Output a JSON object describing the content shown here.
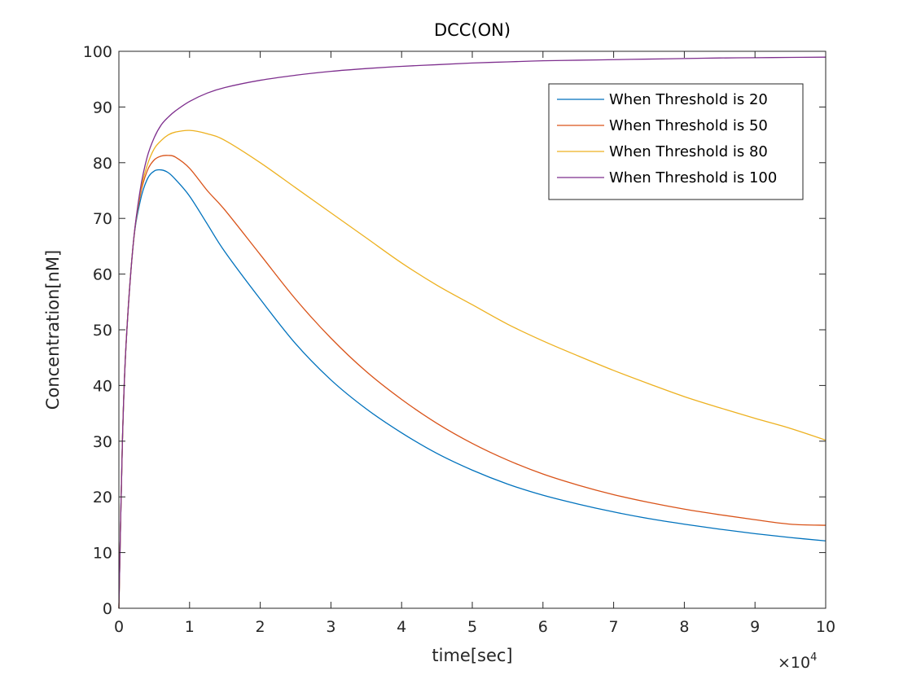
{
  "chart_data": {
    "type": "line",
    "title": "DCC(ON)",
    "xlabel": "time[sec]",
    "ylabel": "Concentration[nM]",
    "x_exponent_label": {
      "prefix": "×10",
      "power": "4"
    },
    "xlim": [
      0,
      10
    ],
    "ylim": [
      0,
      100
    ],
    "xticks": [
      0,
      1,
      2,
      3,
      4,
      5,
      6,
      7,
      8,
      9,
      10
    ],
    "yticks": [
      0,
      10,
      20,
      30,
      40,
      50,
      60,
      70,
      80,
      90,
      100
    ],
    "grid": false,
    "legend_position": "top-right",
    "series": [
      {
        "name": "When Threshold is 20",
        "color": "#0072BD",
        "x": [
          0,
          0.05,
          0.1,
          0.2,
          0.3,
          0.4,
          0.5,
          0.6,
          0.7,
          0.8,
          1,
          1.25,
          1.5,
          2,
          2.5,
          3,
          3.5,
          4,
          4.5,
          5,
          5.5,
          6,
          6.5,
          7,
          7.5,
          8,
          8.5,
          9,
          9.5,
          10
        ],
        "values": [
          0,
          30,
          47,
          65,
          73,
          77,
          78.5,
          78.7,
          78.2,
          77,
          74,
          69,
          64,
          55.5,
          47.5,
          41,
          35.8,
          31.5,
          27.8,
          24.8,
          22.3,
          20.3,
          18.7,
          17.3,
          16.1,
          15.1,
          14.2,
          13.4,
          12.7,
          12.1
        ]
      },
      {
        "name": "When Threshold is 50",
        "color": "#D95319",
        "x": [
          0,
          0.05,
          0.1,
          0.2,
          0.3,
          0.4,
          0.5,
          0.6,
          0.7,
          0.8,
          1,
          1.25,
          1.5,
          2,
          2.5,
          3,
          3.5,
          4,
          4.5,
          5,
          5.5,
          6,
          6.5,
          7,
          7.5,
          8,
          8.5,
          9,
          9.5,
          10
        ],
        "values": [
          0,
          30,
          47,
          65,
          74,
          78.5,
          80.5,
          81.2,
          81.3,
          81,
          79,
          75,
          71.5,
          63.5,
          55.5,
          48.5,
          42.5,
          37.5,
          33.2,
          29.6,
          26.6,
          24.1,
          22.1,
          20.4,
          19,
          17.8,
          16.8,
          15.9,
          15.1,
          14.9
        ]
      },
      {
        "name": "When Threshold is 80",
        "color": "#EDB120",
        "x": [
          0,
          0.05,
          0.1,
          0.2,
          0.3,
          0.4,
          0.5,
          0.6,
          0.7,
          0.8,
          1,
          1.25,
          1.5,
          2,
          2.5,
          3,
          3.5,
          4,
          4.5,
          5,
          5.5,
          6,
          6.5,
          7,
          7.5,
          8,
          8.5,
          9,
          9.5,
          10
        ],
        "values": [
          0,
          30,
          47,
          65,
          74.5,
          79.5,
          82.5,
          84,
          85,
          85.5,
          85.8,
          85.2,
          84,
          80,
          75.5,
          71,
          66.5,
          62,
          58,
          54.5,
          51,
          48,
          45.3,
          42.7,
          40.3,
          38,
          36,
          34.1,
          32.3,
          30.2
        ]
      },
      {
        "name": "When Threshold is 100",
        "color": "#7E2F8E",
        "x": [
          0,
          0.05,
          0.1,
          0.2,
          0.3,
          0.4,
          0.5,
          0.6,
          0.7,
          0.8,
          1,
          1.25,
          1.5,
          2,
          2.5,
          3,
          3.5,
          4,
          4.5,
          5,
          5.5,
          6,
          6.5,
          7,
          7.5,
          8,
          8.5,
          9,
          9.5,
          10
        ],
        "values": [
          0,
          30,
          47,
          65,
          75,
          81,
          84.5,
          86.8,
          88.2,
          89.3,
          91,
          92.5,
          93.5,
          94.8,
          95.7,
          96.4,
          96.9,
          97.3,
          97.6,
          97.9,
          98.1,
          98.3,
          98.4,
          98.5,
          98.6,
          98.7,
          98.8,
          98.85,
          98.9,
          98.95
        ]
      }
    ]
  }
}
